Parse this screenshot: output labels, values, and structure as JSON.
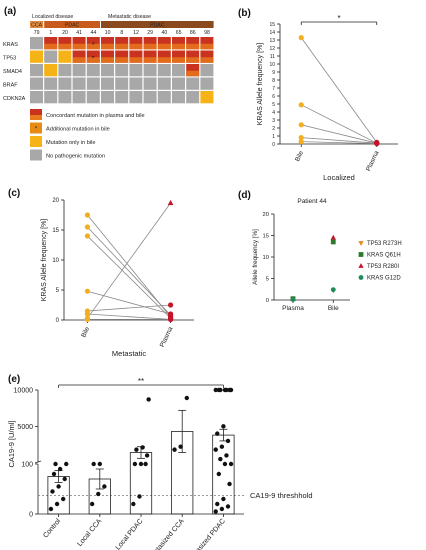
{
  "panels": {
    "a": "(a)",
    "b": "(b)",
    "c": "(c)",
    "d": "(d)",
    "e": "(e)"
  },
  "colors": {
    "concordant": "#c8321e",
    "additional": "#e88a16",
    "bile_only": "#f5b318",
    "none": "#a8a8a8",
    "orange_point": "#f2ae1e",
    "red_point": "#c4162a",
    "dark_green": "#2d7a2d",
    "brown": "#c07a2a",
    "header_light": "#e48a3c",
    "header_dark": "#8a4a1e"
  },
  "chart_data": [
    {
      "panel": "a",
      "type": "heatmap",
      "group_labels": [
        "Localized disease",
        "Metastatic disease"
      ],
      "cancer_types": [
        "CCA",
        "PDAC",
        "PDAC"
      ],
      "patients": [
        "79",
        "1",
        "20",
        "41",
        "44",
        "10",
        "8",
        "12",
        "29",
        "40",
        "65",
        "86",
        "98"
      ],
      "genes": [
        "KRAS",
        "TP53",
        "SMAD4",
        "BRAF",
        "CDKN2A"
      ],
      "cells": [
        [
          "none",
          "concordant",
          "concordant",
          "concordant",
          "concordant",
          "concordant",
          "concordant",
          "concordant",
          "concordant",
          "concordant",
          "concordant",
          "concordant",
          "concordant"
        ],
        [
          "bile_only",
          "none",
          "bile_only",
          "concordant",
          "concordant",
          "concordant",
          "concordant",
          "concordant",
          "concordant",
          "concordant",
          "concordant",
          "concordant",
          "concordant"
        ],
        [
          "none",
          "bile_only",
          "none",
          "none",
          "none",
          "none",
          "none",
          "none",
          "none",
          "none",
          "none",
          "concordant",
          "none"
        ],
        [
          "none",
          "none",
          "none",
          "none",
          "none",
          "none",
          "none",
          "none",
          "none",
          "none",
          "none",
          "none",
          "none"
        ],
        [
          "none",
          "none",
          "none",
          "none",
          "none",
          "none",
          "none",
          "none",
          "none",
          "none",
          "none",
          "none",
          "bile_only"
        ]
      ],
      "marked_cells": [
        [
          0,
          4
        ],
        [
          1,
          4
        ]
      ],
      "legend": [
        {
          "key": "concordant",
          "label": "Concordant mutation in plasma and bile"
        },
        {
          "key": "additional",
          "label": "Additional mutation in bile"
        },
        {
          "key": "bile_only",
          "label": "Mutation only in bile"
        },
        {
          "key": "none",
          "label": "No pathogenic mutation"
        }
      ]
    },
    {
      "panel": "b",
      "type": "scatter",
      "ylabel": "KRAS Allele frequency [%]",
      "xlabel": "Localized",
      "categories": [
        "Bile",
        "Plasma"
      ],
      "ylim": [
        0,
        15
      ],
      "yticks": [
        0,
        1,
        2,
        3,
        4,
        5,
        6,
        7,
        8,
        9,
        10,
        11,
        12,
        13,
        14,
        15
      ],
      "pairs": [
        [
          13.3,
          0.2
        ],
        [
          4.9,
          0.1
        ],
        [
          2.4,
          0.1
        ],
        [
          0.8,
          0.1
        ],
        [
          0.3,
          0.05
        ]
      ],
      "significance": "*"
    },
    {
      "panel": "c",
      "type": "scatter",
      "ylabel": "KRAS Allele frequency [%]",
      "xlabel": "Metastatic",
      "categories": [
        "Bile",
        "Plasma"
      ],
      "ylim": [
        0,
        20
      ],
      "yticks": [
        0,
        5,
        10,
        15,
        20
      ],
      "pairs": [
        [
          17.5,
          0.5
        ],
        [
          15.5,
          0.8
        ],
        [
          14.0,
          0.3
        ],
        [
          4.8,
          1.0
        ],
        [
          1.5,
          2.5
        ],
        [
          1.0,
          0.1
        ],
        [
          0.3,
          19.5
        ],
        [
          0.1,
          0.1
        ]
      ]
    },
    {
      "panel": "d",
      "type": "scatter",
      "title": "Patient 44",
      "ylabel": "Allele frequency [%]",
      "categories": [
        "Plasma",
        "Bile"
      ],
      "ylim": [
        0,
        20
      ],
      "yticks": [
        0,
        5,
        10,
        15,
        20
      ],
      "series": [
        {
          "name": "TP53 R273H",
          "marker": "triangle-down",
          "color": "#e88a16",
          "values": [
            0.2,
            2.2
          ]
        },
        {
          "name": "KRAS Q61H",
          "marker": "square",
          "color": "#2d7a2d",
          "values": [
            0.3,
            13.5
          ]
        },
        {
          "name": "TP53 R280I",
          "marker": "triangle-up",
          "color": "#c4162a",
          "values": [
            0.2,
            14.5
          ]
        },
        {
          "name": "KRAS G12D",
          "marker": "circle",
          "color": "#1f8a5a",
          "values": [
            0.1,
            2.4
          ]
        }
      ]
    },
    {
      "panel": "e",
      "type": "bar",
      "ylabel": "CA19-9 [U/ml]",
      "categories": [
        "Control",
        "Local CCA",
        "Local PDAC",
        "Metastasized CCA",
        "Metastasized PDAC"
      ],
      "means": [
        75,
        70,
        1400,
        4300,
        3800
      ],
      "errors": [
        12,
        20,
        800,
        2900,
        800
      ],
      "yticks_upper": [
        5000,
        10000
      ],
      "yticks_lower": [
        0,
        100
      ],
      "threshold": 37,
      "threshold_label": "CA19-9 threshhold",
      "significance": "**",
      "points": [
        [
          10,
          20,
          30,
          45,
          55,
          70,
          80,
          90,
          100,
          100
        ],
        [
          20,
          40,
          55,
          100,
          100
        ],
        [
          20,
          35,
          100,
          100,
          100,
          1000,
          1800,
          2100,
          8700
        ],
        [
          1800,
          2200,
          8900
        ],
        [
          5,
          10,
          15,
          20,
          30,
          60,
          80,
          100,
          100,
          500,
          1000,
          1800,
          2200,
          3000,
          4000,
          5000,
          10000,
          10000,
          10000,
          10000,
          10000,
          10000,
          10000
        ]
      ]
    }
  ]
}
